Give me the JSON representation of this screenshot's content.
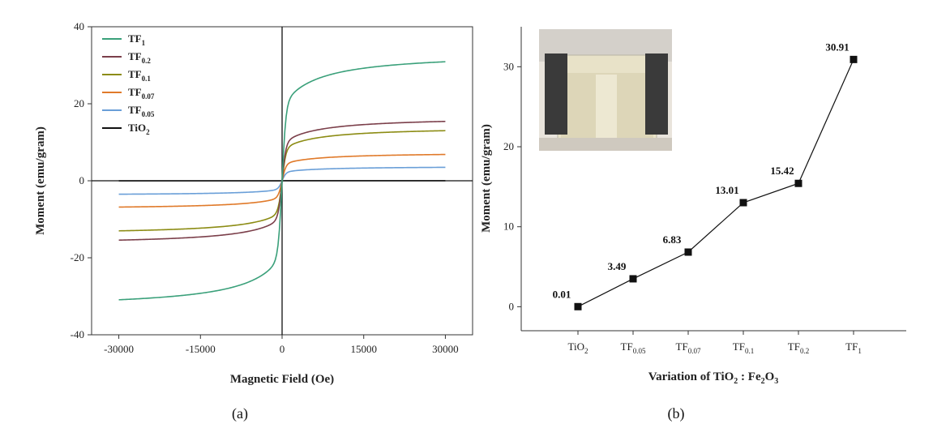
{
  "panels": {
    "a_label": "(a)",
    "b_label": "(b)"
  },
  "chart_data": [
    {
      "type": "line",
      "panel": "(a)",
      "xlabel": "Magnetic Field (Oe)",
      "ylabel": "Moment (emu/gram)",
      "xlim": [
        -35000,
        35000
      ],
      "ylim": [
        -40,
        40
      ],
      "xticks": [
        -30000,
        -15000,
        0,
        15000,
        30000
      ],
      "xtick_labels": [
        "-30000",
        "-15000",
        "0",
        "15000",
        "30000"
      ],
      "yticks": [
        -40,
        -20,
        0,
        20,
        40
      ],
      "ytick_labels": [
        "-40",
        "-20",
        "0",
        "20",
        "40"
      ],
      "legend_position": "top-left",
      "series": [
        {
          "name": "TF",
          "sub": "1",
          "color": "#3aa07a",
          "ms": 30.91,
          "x": [
            -30000,
            -15000,
            -5000,
            -2000,
            -500,
            0,
            500,
            2000,
            5000,
            15000,
            30000
          ],
          "y": [
            -30.9,
            -28.6,
            -24.5,
            -20.5,
            -10.5,
            0,
            10.5,
            20.5,
            24.5,
            28.6,
            30.9
          ]
        },
        {
          "name": "TF",
          "sub": "0.2",
          "color": "#7b3f4a",
          "ms": 15.42,
          "x": [
            -30000,
            -15000,
            -5000,
            -2000,
            -500,
            0,
            500,
            2000,
            5000,
            15000,
            30000
          ],
          "y": [
            -15.4,
            -14.4,
            -12.3,
            -10.3,
            -5.2,
            0,
            5.2,
            10.3,
            12.3,
            14.4,
            15.4
          ]
        },
        {
          "name": "TF",
          "sub": "0.1",
          "color": "#8c8c14",
          "ms": 13.01,
          "x": [
            -30000,
            -15000,
            -5000,
            -2000,
            -500,
            0,
            500,
            2000,
            5000,
            15000,
            30000
          ],
          "y": [
            -13.0,
            -12.1,
            -10.4,
            -8.7,
            -4.4,
            0,
            4.4,
            8.7,
            10.4,
            12.1,
            13.0
          ]
        },
        {
          "name": "TF",
          "sub": "0.07",
          "color": "#e07a2a",
          "ms": 6.83,
          "x": [
            -30000,
            -15000,
            -5000,
            -2000,
            -500,
            0,
            500,
            2000,
            5000,
            15000,
            30000
          ],
          "y": [
            -6.8,
            -6.3,
            -5.4,
            -4.5,
            -2.3,
            0,
            2.3,
            4.5,
            5.4,
            6.3,
            6.8
          ]
        },
        {
          "name": "TF",
          "sub": "0.05",
          "color": "#6a9fd8",
          "ms": 3.49,
          "x": [
            -30000,
            -15000,
            -5000,
            -2000,
            -500,
            0,
            500,
            2000,
            5000,
            15000,
            30000
          ],
          "y": [
            -3.5,
            -3.2,
            -2.8,
            -2.3,
            -1.2,
            0,
            1.2,
            2.3,
            2.8,
            3.2,
            3.5
          ]
        },
        {
          "name": "TiO",
          "sub": "2",
          "color": "#111111",
          "ms": 0.01,
          "x": [
            -30000,
            30000
          ],
          "y": [
            -0.01,
            0.01
          ]
        }
      ]
    },
    {
      "type": "line",
      "panel": "(b)",
      "xlabel_parts": [
        {
          "t": "Variation of TiO",
          "sub": false
        },
        {
          "t": "2",
          "sub": true
        },
        {
          "t": " : Fe",
          "sub": false
        },
        {
          "t": "2",
          "sub": true
        },
        {
          "t": "O",
          "sub": false
        },
        {
          "t": "3",
          "sub": true
        }
      ],
      "ylabel": "Moment (emu/gram)",
      "ylim": [
        -3,
        35
      ],
      "yticks": [
        0,
        10,
        20,
        30
      ],
      "ytick_labels": [
        "0",
        "10",
        "20",
        "30"
      ],
      "categories": [
        {
          "base": "TiO",
          "sub": "2"
        },
        {
          "base": "TF",
          "sub": "0.05"
        },
        {
          "base": "TF",
          "sub": "0.07"
        },
        {
          "base": "TF",
          "sub": "0.1"
        },
        {
          "base": "TF",
          "sub": "0.2"
        },
        {
          "base": "TF",
          "sub": "1"
        }
      ],
      "values": [
        0.01,
        3.49,
        6.83,
        13.01,
        15.42,
        30.91
      ],
      "data_labels": [
        "0.01",
        "3.49",
        "6.83",
        "13.01",
        "15.42",
        "30.91"
      ],
      "marker": "square",
      "line_color": "#111111",
      "inset": "photo"
    }
  ]
}
